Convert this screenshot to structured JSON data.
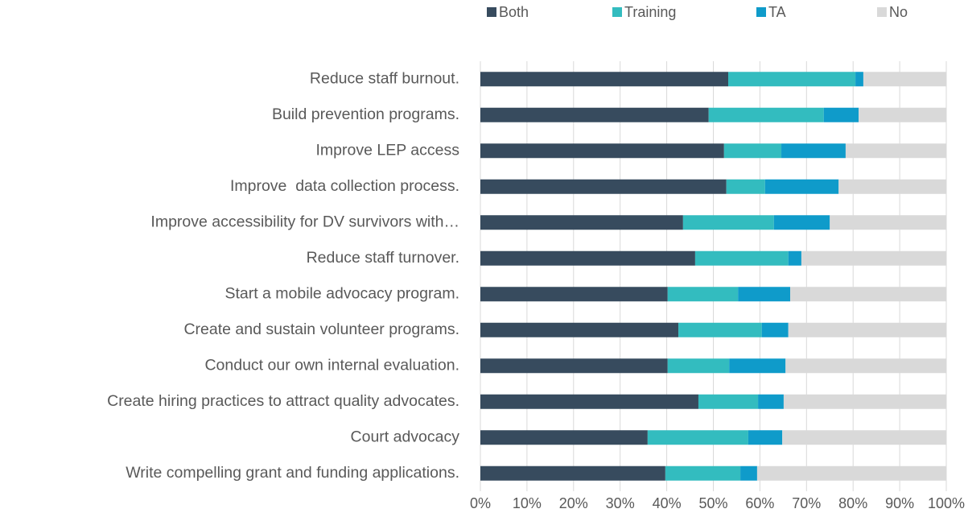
{
  "chart_data": {
    "type": "stacked-barh",
    "categories": [
      "Reduce staff burnout.",
      "Build prevention programs.",
      "Improve LEP access",
      "Improve  data collection process.",
      "Improve accessibility for DV survivors with…",
      "Reduce staff turnover.",
      "Start a mobile advocacy program.",
      "Create and sustain volunteer programs.",
      "Conduct our own internal evaluation.",
      "Create hiring practices to attract quality advocates.",
      "Court advocacy",
      "Write compelling grant and funding applications."
    ],
    "series": [
      {
        "name": "Both",
        "color": "#374b5e",
        "values": [
          53.2,
          49.0,
          52.3,
          52.8,
          43.5,
          46.1,
          40.2,
          42.5,
          40.2,
          46.8,
          35.9,
          39.7
        ]
      },
      {
        "name": "Training",
        "color": "#33bcbf",
        "values": [
          27.3,
          24.7,
          12.3,
          8.3,
          19.5,
          20.0,
          15.1,
          17.9,
          13.2,
          12.8,
          21.6,
          16.1
        ]
      },
      {
        "name": "TA",
        "color": "#0f9bca",
        "values": [
          1.7,
          7.5,
          13.8,
          15.8,
          12.0,
          2.8,
          11.2,
          5.7,
          12.1,
          5.5,
          7.3,
          3.6
        ]
      },
      {
        "name": "No",
        "color": "#d9d9d9",
        "values": [
          17.8,
          18.8,
          21.6,
          23.1,
          25.0,
          31.1,
          33.5,
          33.9,
          34.5,
          34.9,
          35.2,
          40.6
        ]
      }
    ],
    "xlim": [
      0,
      100
    ],
    "xticks": [
      {
        "value": 0,
        "label": "0%"
      },
      {
        "value": 10,
        "label": "10%"
      },
      {
        "value": 20,
        "label": "20%"
      },
      {
        "value": 30,
        "label": "30%"
      },
      {
        "value": 40,
        "label": "40%"
      },
      {
        "value": 50,
        "label": "50%"
      },
      {
        "value": 60,
        "label": "60%"
      },
      {
        "value": 70,
        "label": "70%"
      },
      {
        "value": 80,
        "label": "80%"
      },
      {
        "value": 90,
        "label": "90%"
      },
      {
        "value": 100,
        "label": "100%"
      }
    ],
    "grid": true,
    "legend": "top"
  }
}
